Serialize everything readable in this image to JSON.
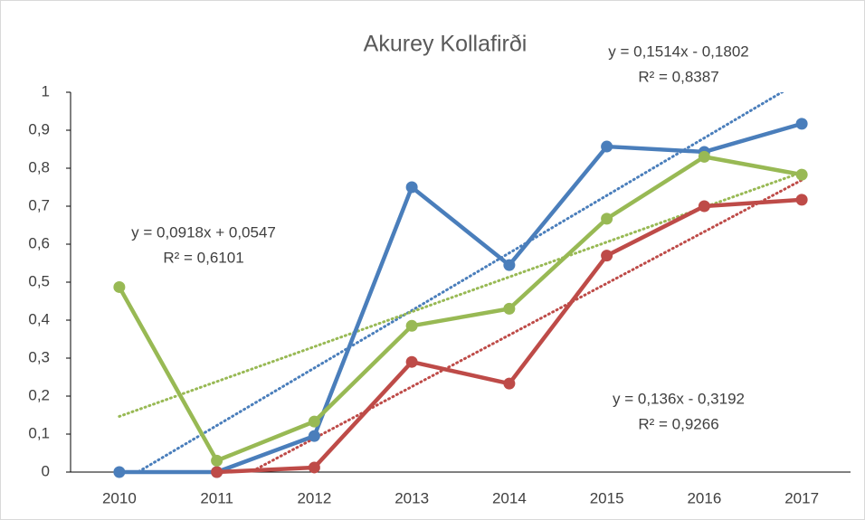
{
  "chart_data": {
    "type": "line",
    "title": "Akurey Kollafirði",
    "categories": [
      "2010",
      "2011",
      "2012",
      "2013",
      "2014",
      "2015",
      "2016",
      "2017"
    ],
    "ylim": [
      0,
      1
    ],
    "yticks": [
      0,
      {
        "value": 0.1,
        "label": "0,1"
      },
      {
        "value": 0.2,
        "label": "0,2"
      },
      {
        "value": 0.3,
        "label": "0,3"
      },
      {
        "value": 0.4,
        "label": "0,4"
      },
      {
        "value": 0.5,
        "label": "0,5"
      },
      {
        "value": 0.6,
        "label": "0,6"
      },
      {
        "value": 0.7,
        "label": "0,7"
      },
      {
        "value": 0.8,
        "label": "0,8"
      },
      {
        "value": 0.9,
        "label": "0,9"
      },
      1
    ],
    "series": [
      {
        "color": "#4a7ebb",
        "values": [
          0,
          0,
          0.095,
          0.75,
          0.545,
          0.857,
          0.843,
          0.917
        ],
        "trendline": {
          "slope": 0.1514,
          "intercept": -0.1802,
          "equation": "y = 0,1514x - 0,1802",
          "r2": "R² = 0,8387"
        }
      },
      {
        "color": "#be4b48",
        "values": [
          null,
          0,
          0.012,
          0.29,
          0.233,
          0.57,
          0.7,
          0.717
        ],
        "trendline": {
          "slope": 0.136,
          "intercept": -0.3192,
          "equation": "y = 0,136x - 0,3192",
          "r2": "R² = 0,9266"
        }
      },
      {
        "color": "#98b954",
        "values": [
          0.487,
          0.03,
          0.133,
          0.385,
          0.43,
          0.667,
          0.83,
          0.783
        ],
        "trendline": {
          "slope": 0.0918,
          "intercept": 0.0547,
          "equation": "y = 0,0918x + 0,0547",
          "r2": "R² = 0,6101"
        }
      }
    ]
  }
}
